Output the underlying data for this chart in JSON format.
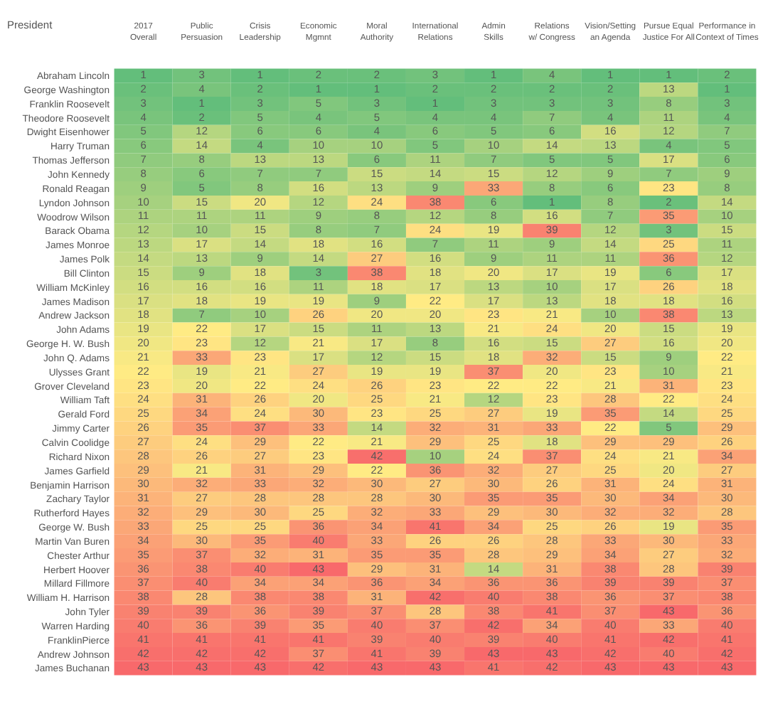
{
  "chart_data": {
    "type": "heatmap",
    "ylabel": "President",
    "categories": [
      "2017 Overall",
      "Public Persuasion",
      "Crisis Leadership",
      "Economic Mgmnt",
      "Moral Authority",
      "International Relations",
      "Admin Skills",
      "Relations w/ Congress",
      "Vision/Setting an Agenda",
      "Pursue Equal Justice For All",
      "Performance in Context of Times"
    ],
    "y_categories": [
      "Abraham Lincoln",
      "George Washington",
      "Franklin Roosevelt",
      "Theodore Roosevelt",
      "Dwight Eisenhower",
      "Harry Truman",
      "Thomas Jefferson",
      "John Kennedy",
      "Ronald Reagan",
      "Lyndon Johnson",
      "Woodrow Wilson",
      "Barack Obama",
      "James Monroe",
      "James Polk",
      "Bill Clinton",
      "William McKinley",
      "James Madison",
      "Andrew Jackson",
      "John Adams",
      "George H. W. Bush",
      "John Q. Adams",
      "Ulysses Grant",
      "Grover Cleveland",
      "William Taft",
      "Gerald Ford",
      "Jimmy Carter",
      "Calvin Coolidge",
      "Richard Nixon",
      "James Garfield",
      "Benjamin Harrison",
      "Zachary Taylor",
      "Rutherford Hayes",
      "George W. Bush",
      "Martin Van Buren",
      "Chester Arthur",
      "Herbert Hoover",
      "Millard Fillmore",
      "William H. Harrison",
      "John Tyler",
      "Warren Harding",
      "FranklinPierce",
      "Andrew Johnson",
      "James Buchanan"
    ],
    "cells": [
      [
        1,
        3,
        1,
        2,
        2,
        3,
        1,
        4,
        1,
        1,
        2
      ],
      [
        2,
        4,
        2,
        1,
        1,
        2,
        2,
        2,
        2,
        13,
        1
      ],
      [
        3,
        1,
        3,
        5,
        3,
        1,
        3,
        3,
        3,
        8,
        3
      ],
      [
        4,
        2,
        5,
        4,
        5,
        4,
        4,
        7,
        4,
        11,
        4
      ],
      [
        5,
        12,
        6,
        6,
        4,
        6,
        5,
        6,
        16,
        12,
        7
      ],
      [
        6,
        14,
        4,
        10,
        10,
        5,
        10,
        14,
        13,
        4,
        5
      ],
      [
        7,
        8,
        13,
        13,
        6,
        11,
        7,
        5,
        5,
        17,
        6
      ],
      [
        8,
        6,
        7,
        7,
        15,
        14,
        15,
        12,
        9,
        7,
        9
      ],
      [
        9,
        5,
        8,
        16,
        13,
        9,
        33,
        8,
        6,
        23,
        8
      ],
      [
        10,
        15,
        20,
        12,
        24,
        38,
        6,
        1,
        8,
        2,
        14
      ],
      [
        11,
        11,
        11,
        9,
        8,
        12,
        8,
        16,
        7,
        35,
        10
      ],
      [
        12,
        10,
        15,
        8,
        7,
        24,
        19,
        39,
        12,
        3,
        15
      ],
      [
        13,
        17,
        14,
        18,
        16,
        7,
        11,
        9,
        14,
        25,
        11
      ],
      [
        14,
        13,
        9,
        14,
        27,
        16,
        9,
        11,
        11,
        36,
        12
      ],
      [
        15,
        9,
        18,
        3,
        38,
        18,
        20,
        17,
        19,
        6,
        17
      ],
      [
        16,
        16,
        16,
        11,
        18,
        17,
        13,
        10,
        17,
        26,
        18
      ],
      [
        17,
        18,
        19,
        19,
        9,
        22,
        17,
        13,
        18,
        18,
        16
      ],
      [
        18,
        7,
        10,
        26,
        20,
        20,
        23,
        21,
        10,
        38,
        13
      ],
      [
        19,
        22,
        17,
        15,
        11,
        13,
        21,
        24,
        20,
        15,
        19
      ],
      [
        20,
        23,
        12,
        21,
        17,
        8,
        16,
        15,
        27,
        16,
        20
      ],
      [
        21,
        33,
        23,
        17,
        12,
        15,
        18,
        32,
        15,
        9,
        22
      ],
      [
        22,
        19,
        21,
        27,
        19,
        19,
        37,
        20,
        23,
        10,
        21
      ],
      [
        23,
        20,
        22,
        24,
        26,
        23,
        22,
        22,
        21,
        31,
        23
      ],
      [
        24,
        31,
        26,
        20,
        25,
        21,
        12,
        23,
        28,
        22,
        24
      ],
      [
        25,
        34,
        24,
        30,
        23,
        25,
        27,
        19,
        35,
        14,
        25
      ],
      [
        26,
        35,
        37,
        33,
        14,
        32,
        31,
        33,
        22,
        5,
        29
      ],
      [
        27,
        24,
        29,
        22,
        21,
        29,
        25,
        18,
        29,
        29,
        26
      ],
      [
        28,
        26,
        27,
        23,
        42,
        10,
        24,
        37,
        24,
        21,
        34
      ],
      [
        29,
        21,
        31,
        29,
        22,
        36,
        32,
        27,
        25,
        20,
        27
      ],
      [
        30,
        32,
        33,
        32,
        30,
        27,
        30,
        26,
        31,
        24,
        31
      ],
      [
        31,
        27,
        28,
        28,
        28,
        30,
        35,
        35,
        30,
        34,
        30
      ],
      [
        32,
        29,
        30,
        25,
        32,
        33,
        29,
        30,
        32,
        32,
        28
      ],
      [
        33,
        25,
        25,
        36,
        34,
        41,
        34,
        25,
        26,
        19,
        35
      ],
      [
        34,
        30,
        35,
        40,
        33,
        26,
        26,
        28,
        33,
        30,
        33
      ],
      [
        35,
        37,
        32,
        31,
        35,
        35,
        28,
        29,
        34,
        27,
        32
      ],
      [
        36,
        38,
        40,
        43,
        29,
        31,
        14,
        31,
        38,
        28,
        39
      ],
      [
        37,
        40,
        34,
        34,
        36,
        34,
        36,
        36,
        39,
        39,
        37
      ],
      [
        38,
        28,
        38,
        38,
        31,
        42,
        40,
        38,
        36,
        37,
        38
      ],
      [
        39,
        39,
        36,
        39,
        37,
        28,
        38,
        41,
        37,
        43,
        36
      ],
      [
        40,
        36,
        39,
        35,
        40,
        37,
        42,
        34,
        40,
        33,
        40
      ],
      [
        41,
        41,
        41,
        41,
        39,
        40,
        39,
        40,
        41,
        42,
        41
      ],
      [
        42,
        42,
        42,
        37,
        41,
        39,
        43,
        43,
        42,
        40,
        42
      ],
      [
        43,
        43,
        43,
        42,
        43,
        43,
        41,
        42,
        43,
        43,
        43
      ]
    ],
    "data_labels": true
  }
}
